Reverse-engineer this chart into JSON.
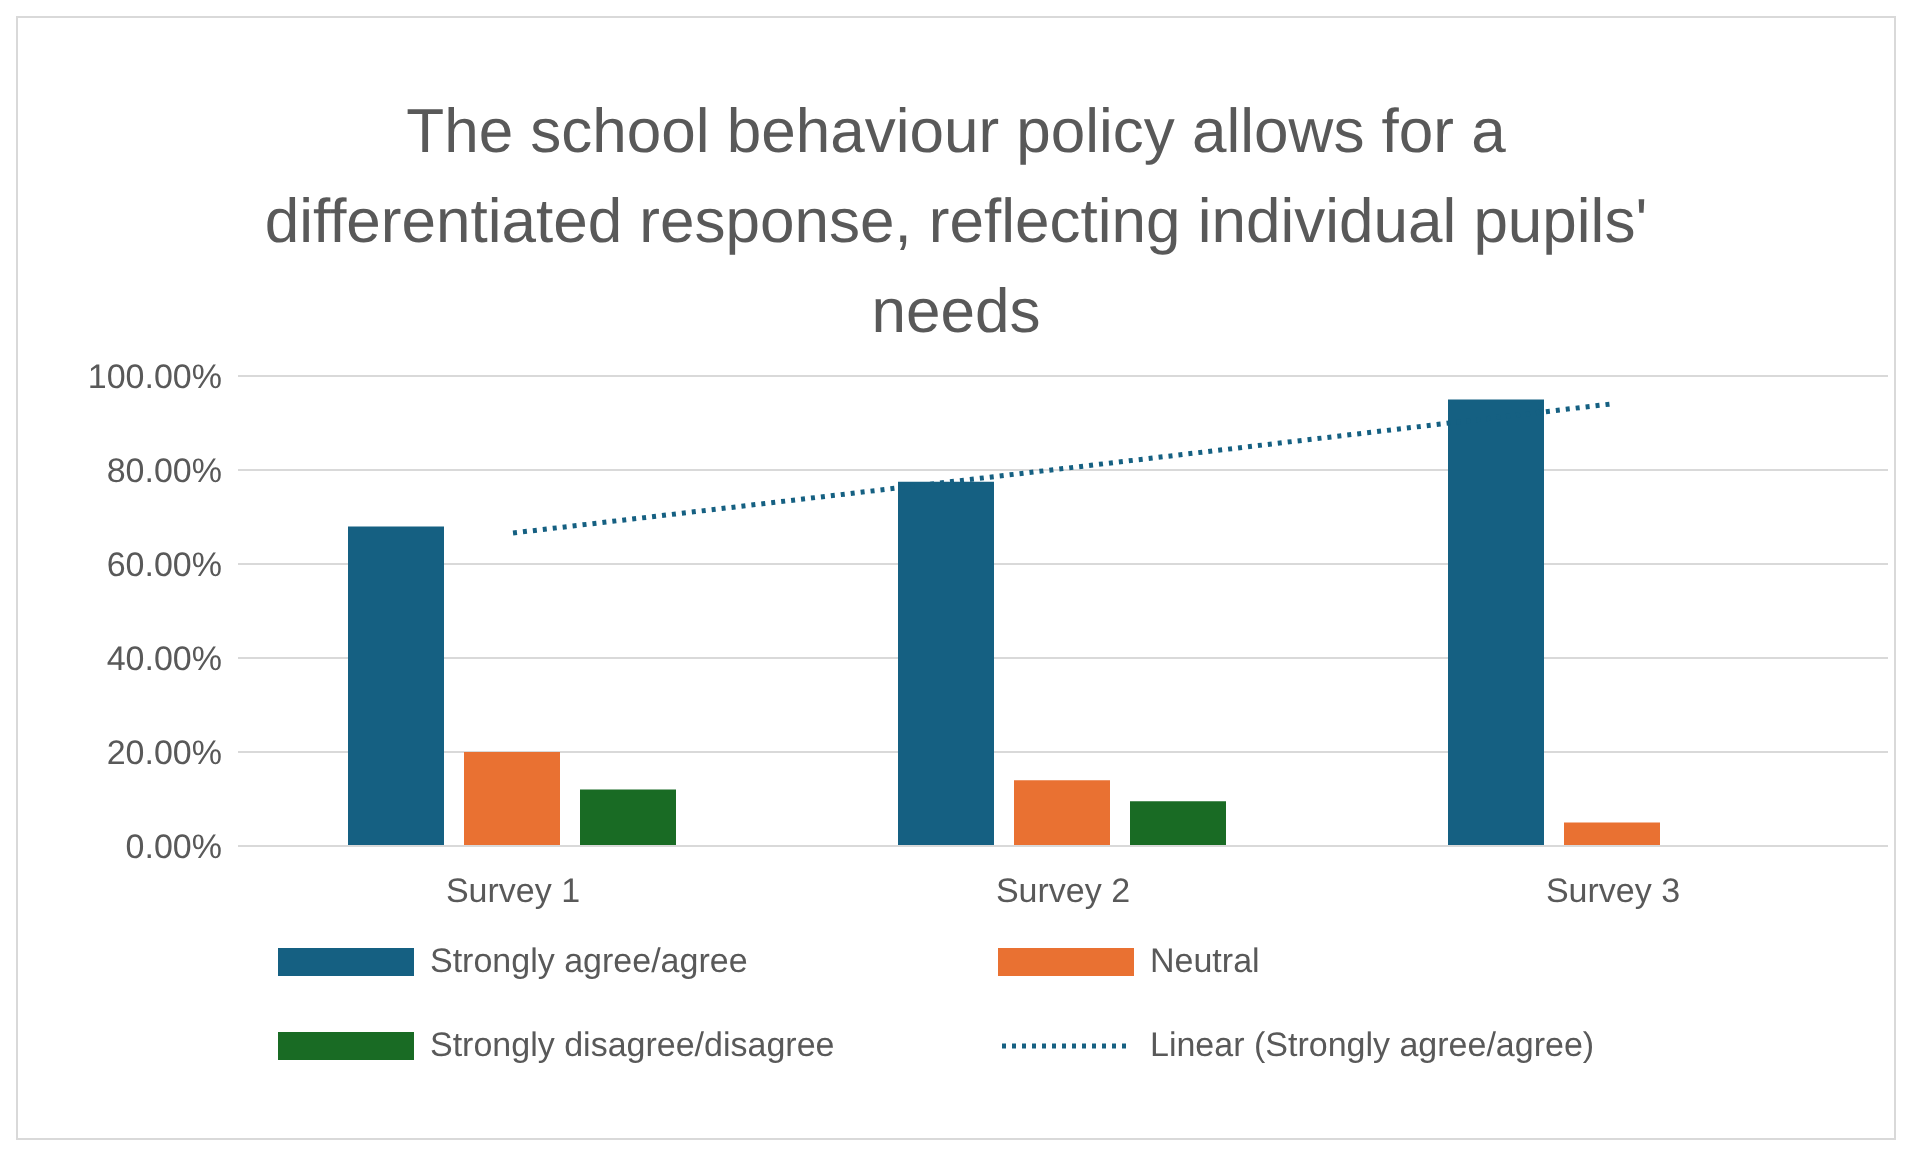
{
  "chart_data": {
    "type": "bar",
    "title": "The school behaviour policy allows for a differentiated response, reflecting individual pupils' needs",
    "categories": [
      "Survey 1",
      "Survey 2",
      "Survey 3"
    ],
    "series": [
      {
        "name": "Strongly agree/agree",
        "color": "#156082",
        "values": [
          68,
          77.5,
          95
        ]
      },
      {
        "name": "Neutral",
        "color": "#e97132",
        "values": [
          20,
          14,
          5
        ]
      },
      {
        "name": "Strongly disagree/disagree",
        "color": "#196b24",
        "values": [
          12,
          9.5,
          0
        ]
      },
      {
        "name": "Linear (Strongly agree/agree)",
        "type": "line",
        "line_style": "dotted",
        "color": "#156082",
        "x": [
          "Survey 1",
          "Survey 2",
          "Survey 3"
        ],
        "values": [
          66.6,
          80.3,
          94.1
        ]
      }
    ],
    "ylim": [
      0,
      100
    ],
    "yticks": [
      {
        "value": 0,
        "label": "0.00%"
      },
      {
        "value": 20,
        "label": "20.00%"
      },
      {
        "value": 40,
        "label": "40.00%"
      },
      {
        "value": 60,
        "label": "60.00%"
      },
      {
        "value": 80,
        "label": "80.00%"
      },
      {
        "value": 100,
        "label": "100.00%"
      }
    ],
    "grid": "y",
    "legend": "bottom",
    "marker": "none"
  }
}
